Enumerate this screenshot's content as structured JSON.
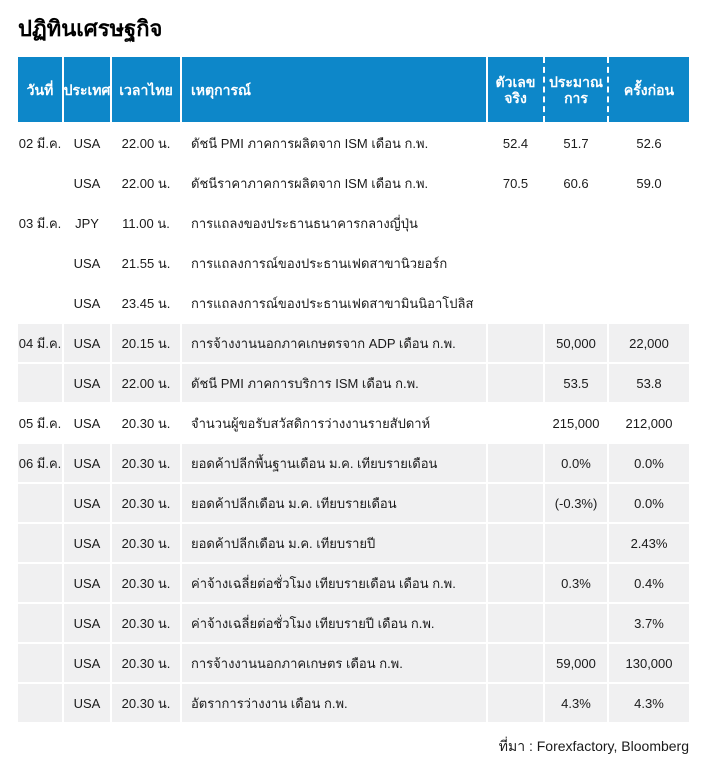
{
  "title": "ปฏิทินเศรษฐกิจ",
  "source_note": "ที่มา : Forexfactory, Bloomberg",
  "colors": {
    "header_bg": "#0d87c9",
    "header_text": "#ffffff",
    "row_alt_bg": "#f0f0f1",
    "text": "#1b1b1b"
  },
  "table": {
    "columns": {
      "date": "วันที่",
      "country": "ประเทศ",
      "time": "เวลาไทย",
      "event": "เหตุการณ์",
      "actual": "ตัวเลขจริง",
      "forecast": "ประมาณ\nการ",
      "previous": "ครั้งก่อน"
    },
    "rows": [
      {
        "date": "02 มี.ค.",
        "country": "USA",
        "time": "22.00 น.",
        "event": "ดัชนี PMI ภาคการผลิตจาก ISM เดือน ก.พ.",
        "actual": "52.4",
        "forecast": "51.7",
        "previous": "52.6",
        "shaded": false
      },
      {
        "date": "",
        "country": "USA",
        "time": "22.00 น.",
        "event": "ดัชนีราคาภาคการผลิตจาก ISM เดือน ก.พ.",
        "actual": "70.5",
        "forecast": "60.6",
        "previous": "59.0",
        "shaded": false
      },
      {
        "date": "03 มี.ค.",
        "country": "JPY",
        "time": "11.00 น.",
        "event": "การแถลงของประธานธนาคารกลางญี่ปุ่น",
        "actual": "",
        "forecast": "",
        "previous": "",
        "shaded": false
      },
      {
        "date": "",
        "country": "USA",
        "time": "21.55 น.",
        "event": "การแถลงการณ์ของประธานเฟดสาขานิวยอร์ก",
        "actual": "",
        "forecast": "",
        "previous": "",
        "shaded": false
      },
      {
        "date": "",
        "country": "USA",
        "time": "23.45 น.",
        "event": "การแถลงการณ์ของประธานเฟดสาขามินนิอาโปลิส",
        "actual": "",
        "forecast": "",
        "previous": "",
        "shaded": false
      },
      {
        "date": "04 มี.ค.",
        "country": "USA",
        "time": "20.15 น.",
        "event": "การจ้างงานนอกภาคเกษตรจาก ADP เดือน ก.พ.",
        "actual": "",
        "forecast": "50,000",
        "previous": "22,000",
        "shaded": true
      },
      {
        "date": "",
        "country": "USA",
        "time": "22.00 น.",
        "event": "ดัชนี PMI ภาคการบริการ ISM เดือน ก.พ.",
        "actual": "",
        "forecast": "53.5",
        "previous": "53.8",
        "shaded": true
      },
      {
        "date": "05 มี.ค.",
        "country": "USA",
        "time": "20.30 น.",
        "event": "จำนวนผู้ขอรับสวัสดิการว่างงานรายสัปดาห์",
        "actual": "",
        "forecast": "215,000",
        "previous": "212,000",
        "shaded": false
      },
      {
        "date": "06 มี.ค.",
        "country": "USA",
        "time": "20.30 น.",
        "event": "ยอดค้าปลีกพื้นฐานเดือน ม.ค. เทียบรายเดือน",
        "actual": "",
        "forecast": "0.0%",
        "previous": "0.0%",
        "shaded": true
      },
      {
        "date": "",
        "country": "USA",
        "time": "20.30 น.",
        "event": "ยอดค้าปลีกเดือน ม.ค. เทียบรายเดือน",
        "actual": "",
        "forecast": "(-0.3%)",
        "previous": "0.0%",
        "shaded": true
      },
      {
        "date": "",
        "country": "USA",
        "time": "20.30 น.",
        "event": "ยอดค้าปลีกเดือน ม.ค. เทียบรายปี",
        "actual": "",
        "forecast": "",
        "previous": "2.43%",
        "shaded": true
      },
      {
        "date": "",
        "country": "USA",
        "time": "20.30 น.",
        "event": "ค่าจ้างเฉลี่ยต่อชั่วโมง เทียบรายเดือน เดือน ก.พ.",
        "actual": "",
        "forecast": "0.3%",
        "previous": "0.4%",
        "shaded": true
      },
      {
        "date": "",
        "country": "USA",
        "time": "20.30 น.",
        "event": "ค่าจ้างเฉลี่ยต่อชั่วโมง เทียบรายปี เดือน ก.พ.",
        "actual": "",
        "forecast": "",
        "previous": "3.7%",
        "shaded": true
      },
      {
        "date": "",
        "country": "USA",
        "time": "20.30 น.",
        "event": "การจ้างงานนอกภาคเกษตร เดือน ก.พ.",
        "actual": "",
        "forecast": "59,000",
        "previous": "130,000",
        "shaded": true
      },
      {
        "date": "",
        "country": "USA",
        "time": "20.30 น.",
        "event": "อัตราการว่างงาน เดือน ก.พ.",
        "actual": "",
        "forecast": "4.3%",
        "previous": "4.3%",
        "shaded": true
      }
    ]
  }
}
